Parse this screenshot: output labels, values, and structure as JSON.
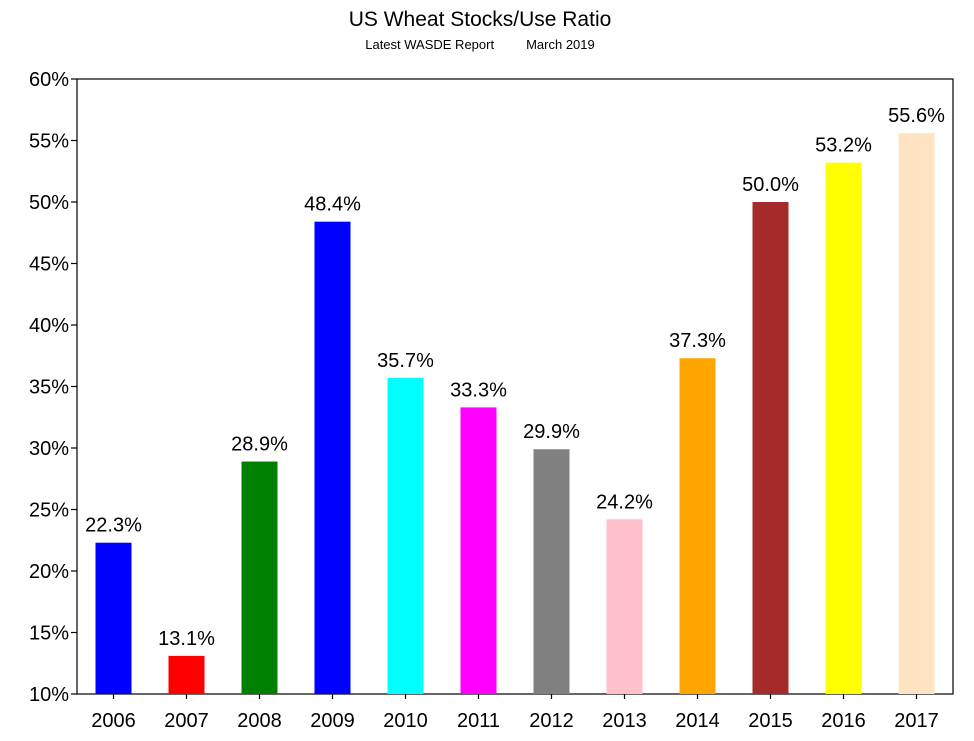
{
  "chart_data": {
    "type": "bar",
    "title": "US Wheat Stocks/Use Ratio",
    "subtitle_left": "Latest WASDE Report",
    "subtitle_right": "March 2019",
    "categories": [
      "2006",
      "2007",
      "2008",
      "2009",
      "2010",
      "2011",
      "2012",
      "2013",
      "2014",
      "2015",
      "2016",
      "2017"
    ],
    "values": [
      22.3,
      13.1,
      28.9,
      48.4,
      35.7,
      33.3,
      29.9,
      24.2,
      37.3,
      50.0,
      53.2,
      55.6
    ],
    "data_labels": [
      "22.3%",
      "13.1%",
      "28.9%",
      "48.4%",
      "35.7%",
      "33.3%",
      "29.9%",
      "24.2%",
      "37.3%",
      "50.0%",
      "53.2%",
      "55.6%"
    ],
    "colors": [
      "#0000ff",
      "#ff0000",
      "#008000",
      "#0000ff",
      "#00ffff",
      "#ff00ff",
      "#808080",
      "#ffc0cb",
      "#ffa500",
      "#a52a2a",
      "#ffff00",
      "#ffe4c4"
    ],
    "ylim": [
      10,
      60
    ],
    "yticks": [
      10,
      15,
      20,
      25,
      30,
      35,
      40,
      45,
      50,
      55,
      60
    ],
    "ytick_labels": [
      "10%",
      "15%",
      "20%",
      "25%",
      "30%",
      "35%",
      "40%",
      "45%",
      "50%",
      "55%",
      "60%"
    ],
    "xlabel": "",
    "ylabel": "",
    "grid": false,
    "legend": "none"
  }
}
